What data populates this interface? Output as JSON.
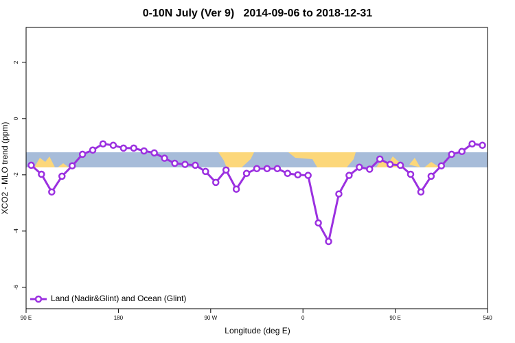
{
  "chart_data": {
    "type": "line",
    "title": "0-10N July (Ver 9)   2014-09-06 to 2018-12-31",
    "x_label": "Longitude (deg E)",
    "y_label": "XCO2 - MLO trend (ppm)",
    "xlim": [
      90,
      540
    ],
    "xticks": [
      {
        "value": 90,
        "label": "90 E"
      },
      180,
      {
        "value": 270,
        "label": "90 W"
      },
      {
        "value": 360,
        "label": "0"
      },
      {
        "value": 450,
        "label": "90 E"
      },
      540
    ],
    "ylim": [
      -6.76,
      3.24
    ],
    "yticks": [
      -6,
      -4,
      -2,
      0,
      2
    ],
    "legend": "bottom-left",
    "x": [
      95,
      105,
      115,
      125,
      135,
      145,
      155,
      165,
      175,
      185,
      195,
      205,
      215,
      225,
      235,
      245,
      255,
      265,
      275,
      285,
      295,
      305,
      315,
      325,
      335,
      345,
      355,
      365,
      375,
      385,
      395,
      405,
      415,
      425,
      435,
      445,
      455,
      465,
      475,
      485,
      495,
      505,
      515,
      525,
      535
    ],
    "series": [
      {
        "name": "Land (Nadir&Glint) and Ocean (Glint)",
        "color": "#9b30e0",
        "values": [
          -1.66,
          -1.98,
          -2.61,
          -2.05,
          -1.68,
          -1.27,
          -1.12,
          -0.9,
          -0.95,
          -1.05,
          -1.05,
          -1.15,
          -1.22,
          -1.41,
          -1.59,
          -1.63,
          -1.66,
          -1.88,
          -2.27,
          -1.83,
          -2.51,
          -1.95,
          -1.78,
          -1.78,
          -1.78,
          -1.95,
          -2.0,
          -2.02,
          -3.71,
          -4.37,
          -2.68,
          -2.02,
          -1.73,
          -1.8,
          -1.44,
          -1.63,
          -1.66,
          -1.98,
          -2.61,
          -2.05,
          -1.68,
          -1.27,
          -1.17,
          -0.9,
          -0.95
        ]
      }
    ]
  }
}
